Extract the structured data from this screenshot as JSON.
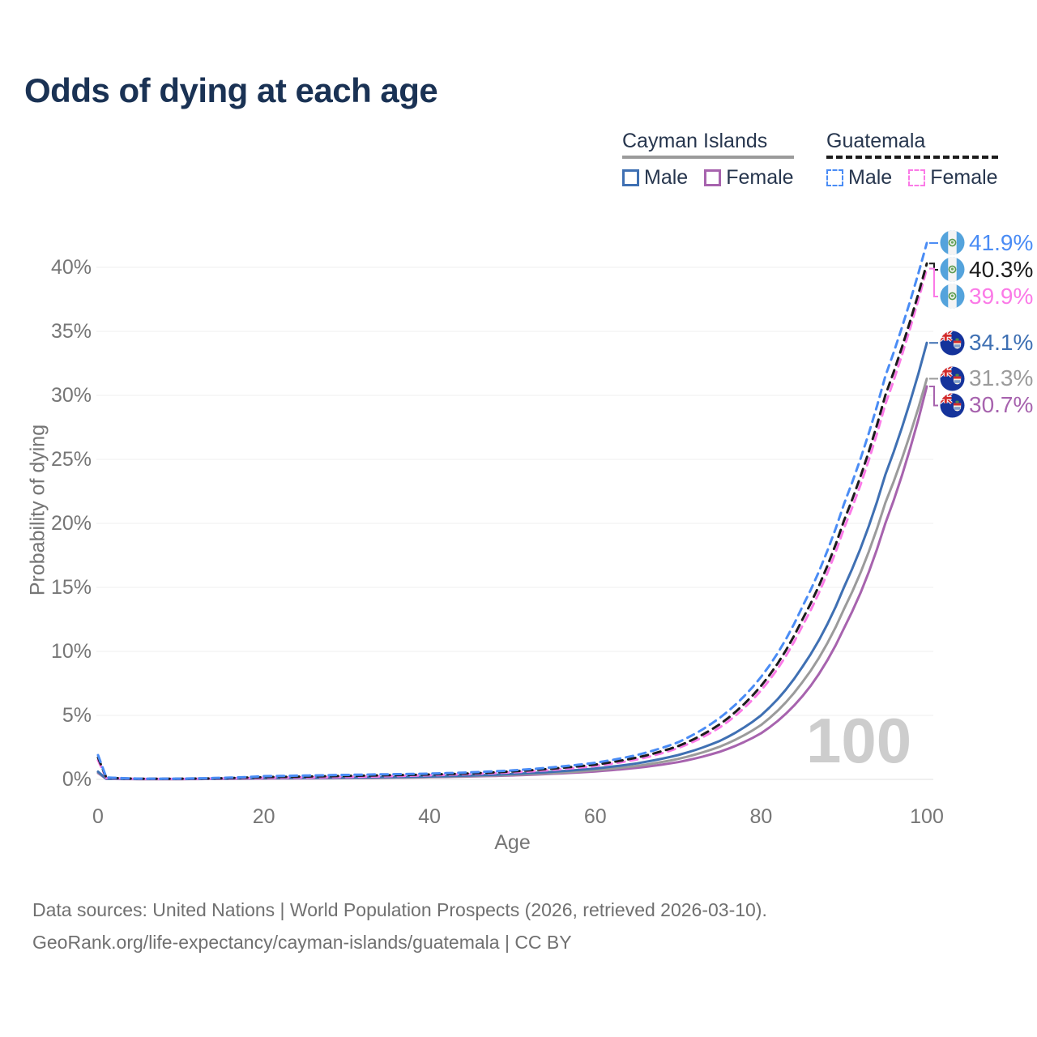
{
  "title": "Odds of dying at each age",
  "legend": {
    "groups": [
      {
        "name": "Cayman Islands",
        "style": "solid",
        "items": [
          {
            "label": "Male"
          },
          {
            "label": "Female"
          }
        ]
      },
      {
        "name": "Guatemala",
        "style": "dashed",
        "items": [
          {
            "label": "Male"
          },
          {
            "label": "Female"
          }
        ]
      }
    ]
  },
  "chart_data": {
    "type": "line",
    "title": "Odds of dying at each age",
    "xlabel": "Age",
    "ylabel": "Probability of dying",
    "x_ticks": [
      0,
      20,
      40,
      60,
      80,
      100
    ],
    "y_ticks": [
      "0%",
      "5%",
      "10%",
      "15%",
      "20%",
      "25%",
      "30%",
      "35%",
      "40%"
    ],
    "xlim": [
      0,
      100
    ],
    "ylim_percent": [
      0,
      43
    ],
    "grid": "horizontal",
    "legend_position": "top-right",
    "age_watermark": "100",
    "ages": [
      0,
      1,
      5,
      10,
      15,
      20,
      25,
      30,
      35,
      40,
      45,
      50,
      55,
      60,
      65,
      70,
      75,
      80,
      85,
      90,
      95,
      100
    ],
    "series": [
      {
        "name": "Guatemala Male",
        "country": "Guatemala",
        "sex": "Male",
        "style": "dashed",
        "color": "#4a8cf5",
        "end_label": "41.9%",
        "end_value": 41.9,
        "values": [
          1.9,
          0.15,
          0.06,
          0.06,
          0.12,
          0.25,
          0.3,
          0.35,
          0.4,
          0.45,
          0.55,
          0.7,
          0.95,
          1.3,
          1.9,
          2.9,
          4.8,
          8.0,
          13.5,
          21.5,
          31.5,
          41.9
        ]
      },
      {
        "name": "Guatemala",
        "country": "Guatemala",
        "sex": "Both",
        "style": "dashed",
        "color": "#1c1c1c",
        "end_label": "40.3%",
        "end_value": 40.3,
        "values": [
          1.7,
          0.13,
          0.05,
          0.05,
          0.09,
          0.18,
          0.22,
          0.27,
          0.32,
          0.38,
          0.47,
          0.62,
          0.85,
          1.15,
          1.7,
          2.6,
          4.3,
          7.3,
          12.5,
          20.2,
          30.0,
          40.3
        ]
      },
      {
        "name": "Guatemala Female",
        "country": "Guatemala",
        "sex": "Female",
        "style": "dashed",
        "color": "#fb7ae7",
        "end_label": "39.9%",
        "end_value": 39.9,
        "values": [
          1.5,
          0.11,
          0.04,
          0.04,
          0.07,
          0.12,
          0.15,
          0.19,
          0.25,
          0.32,
          0.42,
          0.55,
          0.75,
          1.05,
          1.55,
          2.45,
          4.05,
          6.95,
          12.0,
          19.6,
          29.3,
          39.9
        ]
      },
      {
        "name": "Cayman Islands Male",
        "country": "Cayman Islands",
        "sex": "Male",
        "style": "solid",
        "color": "#3f70b3",
        "end_label": "34.1%",
        "end_value": 34.1,
        "values": [
          0.6,
          0.05,
          0.03,
          0.03,
          0.06,
          0.1,
          0.12,
          0.14,
          0.17,
          0.22,
          0.3,
          0.42,
          0.6,
          0.85,
          1.25,
          1.9,
          3.0,
          5.0,
          8.8,
          15.0,
          23.8,
          34.1
        ]
      },
      {
        "name": "Cayman Islands",
        "country": "Cayman Islands",
        "sex": "Both",
        "style": "solid",
        "color": "#9b9b9b",
        "end_label": "31.3%",
        "end_value": 31.3,
        "values": [
          0.55,
          0.045,
          0.025,
          0.025,
          0.05,
          0.08,
          0.1,
          0.12,
          0.15,
          0.19,
          0.26,
          0.36,
          0.5,
          0.72,
          1.05,
          1.6,
          2.55,
          4.25,
          7.6,
          13.3,
          21.6,
          31.3
        ]
      },
      {
        "name": "Cayman Islands Female",
        "country": "Cayman Islands",
        "sex": "Female",
        "style": "solid",
        "color": "#a763ae",
        "end_label": "30.7%",
        "end_value": 30.7,
        "values": [
          0.5,
          0.04,
          0.02,
          0.02,
          0.04,
          0.06,
          0.08,
          0.1,
          0.13,
          0.17,
          0.23,
          0.31,
          0.44,
          0.62,
          0.9,
          1.35,
          2.15,
          3.6,
          6.5,
          11.8,
          20.0,
          30.7
        ]
      }
    ],
    "label_groups": [
      [
        0,
        1,
        2
      ],
      [
        3,
        4,
        5
      ]
    ]
  },
  "footer": {
    "line1": "Data sources: United Nations | World Population Prospects (2026, retrieved 2026-03-10).",
    "line2": "GeoRank.org/life-expectancy/cayman-islands/guatemala | CC BY"
  }
}
